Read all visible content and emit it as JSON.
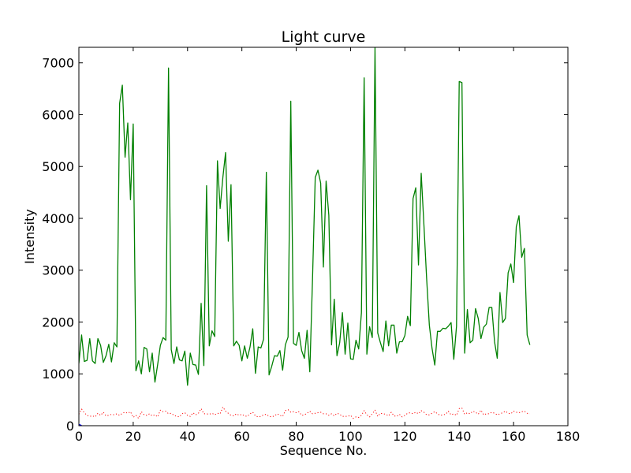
{
  "chart_data": {
    "type": "line",
    "title": "Light curve",
    "xlabel": "Sequence No.",
    "ylabel": "Intensity",
    "xlim": [
      0,
      180
    ],
    "ylim": [
      0,
      7300
    ],
    "xticks": [
      0,
      20,
      40,
      60,
      80,
      100,
      120,
      140,
      160,
      180
    ],
    "yticks": [
      0,
      1000,
      2000,
      3000,
      4000,
      5000,
      6000,
      7000
    ],
    "grid": false,
    "series": [
      {
        "color": "#008000",
        "style": "solid",
        "x": [
          0,
          1,
          2,
          3,
          4,
          5,
          6,
          7,
          8,
          9,
          10,
          11,
          12,
          13,
          14,
          15,
          16,
          17,
          18,
          19,
          20,
          21,
          22,
          23,
          24,
          25,
          26,
          27,
          28,
          29,
          30,
          31,
          32,
          33,
          34,
          35,
          36,
          37,
          38,
          39,
          40,
          41,
          42,
          43,
          44,
          45,
          46,
          47,
          48,
          49,
          50,
          51,
          52,
          53,
          54,
          55,
          56,
          57,
          58,
          59,
          60,
          61,
          62,
          63,
          64,
          65,
          66,
          67,
          68,
          69,
          70,
          71,
          72,
          73,
          74,
          75,
          76,
          77,
          78,
          79,
          80,
          81,
          82,
          83,
          84,
          85,
          86,
          87,
          88,
          89,
          90,
          91,
          92,
          93,
          94,
          95,
          96,
          97,
          98,
          99,
          100,
          101,
          102,
          103,
          104,
          105,
          106,
          107,
          108,
          109,
          110,
          111,
          112,
          113,
          114,
          115,
          116,
          117,
          118,
          119,
          120,
          121,
          122,
          123,
          124,
          125,
          126,
          127,
          128,
          129,
          130,
          131,
          132,
          133,
          134,
          135,
          136,
          137,
          138,
          139,
          140,
          141,
          142,
          143,
          144,
          145,
          146,
          147,
          148,
          149,
          150,
          151,
          152,
          153,
          154,
          155,
          156,
          157,
          158,
          159,
          160,
          161,
          162,
          163,
          164,
          165,
          166
        ],
        "values": [
          1200,
          1750,
          1240,
          1260,
          1680,
          1250,
          1200,
          1680,
          1550,
          1220,
          1350,
          1570,
          1230,
          1600,
          1520,
          6220,
          6570,
          5180,
          5840,
          4360,
          5820,
          1060,
          1250,
          1000,
          1510,
          1480,
          1040,
          1400,
          840,
          1180,
          1550,
          1700,
          1650,
          6900,
          1470,
          1200,
          1520,
          1270,
          1250,
          1440,
          780,
          1400,
          1180,
          1170,
          990,
          2360,
          1160,
          4630,
          1540,
          1830,
          1720,
          5110,
          4190,
          4790,
          5270,
          3560,
          4650,
          1540,
          1630,
          1550,
          1250,
          1540,
          1300,
          1520,
          1870,
          1010,
          1520,
          1500,
          1670,
          4890,
          980,
          1150,
          1350,
          1340,
          1450,
          1070,
          1560,
          1710,
          6260,
          1590,
          1550,
          1800,
          1450,
          1300,
          1840,
          1040,
          2830,
          4790,
          4930,
          4680,
          3060,
          4720,
          4060,
          1560,
          2440,
          1350,
          1600,
          2180,
          1380,
          1980,
          1290,
          1280,
          1650,
          1480,
          2180,
          6710,
          1380,
          1910,
          1700,
          7300,
          1790,
          1600,
          1430,
          2020,
          1540,
          1940,
          1940,
          1400,
          1620,
          1620,
          1740,
          2110,
          1930,
          4380,
          4590,
          3100,
          4870,
          3880,
          2840,
          1940,
          1490,
          1170,
          1820,
          1820,
          1880,
          1870,
          1920,
          1990,
          1280,
          1920,
          6640,
          6620,
          1400,
          2240,
          1600,
          1650,
          2260,
          2070,
          1680,
          1900,
          1960,
          2280,
          2280,
          1620,
          1300,
          2570,
          1990,
          2070,
          2950,
          3120,
          2760,
          3840,
          4050,
          3250,
          3420,
          1750,
          1560
        ]
      },
      {
        "color": "#ff0000",
        "style": "dotted",
        "x": [
          0,
          1,
          2,
          3,
          4,
          5,
          6,
          7,
          8,
          9,
          10,
          11,
          12,
          13,
          14,
          15,
          16,
          17,
          18,
          19,
          20,
          21,
          22,
          23,
          24,
          25,
          26,
          27,
          28,
          29,
          30,
          31,
          32,
          33,
          34,
          35,
          36,
          37,
          38,
          39,
          40,
          41,
          42,
          43,
          44,
          45,
          46,
          47,
          48,
          49,
          50,
          51,
          52,
          53,
          54,
          55,
          56,
          57,
          58,
          59,
          60,
          61,
          62,
          63,
          64,
          65,
          66,
          67,
          68,
          69,
          70,
          71,
          72,
          73,
          74,
          75,
          76,
          77,
          78,
          79,
          80,
          81,
          82,
          83,
          84,
          85,
          86,
          87,
          88,
          89,
          90,
          91,
          92,
          93,
          94,
          95,
          96,
          97,
          98,
          99,
          100,
          101,
          102,
          103,
          104,
          105,
          106,
          107,
          108,
          109,
          110,
          111,
          112,
          113,
          114,
          115,
          116,
          117,
          118,
          119,
          120,
          121,
          122,
          123,
          124,
          125,
          126,
          127,
          128,
          129,
          130,
          131,
          132,
          133,
          134,
          135,
          136,
          137,
          138,
          139,
          140,
          141,
          142,
          143,
          144,
          145,
          146,
          147,
          148,
          149,
          150,
          151,
          152,
          153,
          154,
          155,
          156,
          157,
          158,
          159,
          160,
          161,
          162,
          163,
          164,
          165,
          166
        ],
        "values": [
          220,
          320,
          250,
          200,
          180,
          190,
          170,
          240,
          200,
          260,
          190,
          200,
          220,
          210,
          230,
          200,
          240,
          260,
          240,
          270,
          160,
          200,
          140,
          270,
          210,
          200,
          230,
          190,
          210,
          170,
          300,
          270,
          280,
          230,
          240,
          200,
          180,
          170,
          230,
          250,
          200,
          180,
          250,
          210,
          240,
          330,
          230,
          230,
          220,
          240,
          210,
          240,
          230,
          360,
          280,
          240,
          200,
          190,
          230,
          200,
          220,
          190,
          180,
          230,
          260,
          190,
          170,
          180,
          210,
          220,
          180,
          170,
          190,
          230,
          200,
          180,
          290,
          310,
          260,
          270,
          250,
          270,
          200,
          210,
          240,
          280,
          230,
          240,
          250,
          260,
          230,
          230,
          200,
          230,
          190,
          240,
          220,
          180,
          180,
          180,
          200,
          140,
          170,
          160,
          200,
          290,
          210,
          170,
          230,
          300,
          180,
          240,
          230,
          220,
          190,
          260,
          190,
          180,
          220,
          170,
          200,
          240,
          250,
          230,
          260,
          230,
          290,
          260,
          210,
          210,
          240,
          270,
          230,
          200,
          210,
          220,
          280,
          210,
          230,
          200,
          330,
          340,
          220,
          250,
          230,
          280,
          260,
          220,
          300,
          210,
          230,
          230,
          260,
          240,
          210,
          230,
          250,
          280,
          240,
          230,
          280,
          260,
          250,
          270,
          280,
          240,
          230
        ]
      },
      {
        "color": "#0000ff",
        "style": "solid",
        "x": [
          0,
          0.5,
          1
        ],
        "values": [
          25,
          15,
          5
        ]
      }
    ]
  }
}
